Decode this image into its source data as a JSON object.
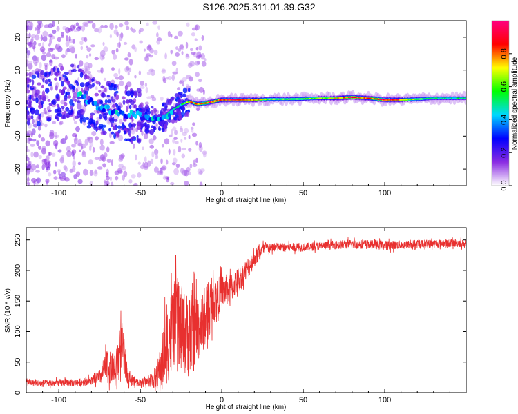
{
  "title": "S126.2025.311.01.39.G32",
  "chart_data": [
    {
      "type": "heatmap",
      "title": "S126.2025.311.01.39.G32",
      "xlabel": "Height of straight line (km)",
      "ylabel": "Frequency (Hz)",
      "xlim": [
        -120,
        150
      ],
      "ylim": [
        -25,
        25
      ],
      "xticks": [
        -100,
        -50,
        0,
        50,
        100
      ],
      "yticks": [
        -20,
        -10,
        0,
        10,
        20
      ],
      "colorbar": {
        "label": "Normalized spectral amplitude",
        "range": [
          0,
          1
        ],
        "ticks": [
          0.0,
          0.2,
          0.4,
          0.6,
          0.8
        ],
        "colors": [
          "#ffffff",
          "#8a2be2",
          "#0000ff",
          "#00d8ff",
          "#00ff00",
          "#ffff00",
          "#ff0000",
          "#ff0080"
        ]
      },
      "ridge": {
        "x": [
          -120,
          -110,
          -100,
          -90,
          -80,
          -70,
          -60,
          -50,
          -45,
          -40,
          -35,
          -30,
          -25,
          -20,
          -15,
          -10,
          -5,
          0,
          10,
          20,
          30,
          40,
          50,
          60,
          70,
          80,
          90,
          100,
          110,
          120,
          130,
          140,
          150
        ],
        "y": [
          1,
          2,
          3,
          4,
          0,
          -2,
          -3,
          -4,
          -5,
          -5,
          -4,
          -2,
          -0.5,
          0.5,
          -0.3,
          0,
          0.5,
          1,
          1,
          1,
          1.2,
          1.2,
          1.3,
          1.5,
          1.5,
          1.8,
          1.5,
          1,
          1,
          1.2,
          1.5,
          1.5,
          1.5
        ],
        "amplitude": [
          0.15,
          0.2,
          0.2,
          0.22,
          0.25,
          0.3,
          0.3,
          0.4,
          0.45,
          0.5,
          0.5,
          0.45,
          0.5,
          0.7,
          0.8,
          0.85,
          0.85,
          0.85,
          0.9,
          0.8,
          0.65,
          0.6,
          0.6,
          0.65,
          0.7,
          0.9,
          0.75,
          0.95,
          0.8,
          0.6,
          0.5,
          0.5,
          0.5
        ]
      }
    },
    {
      "type": "line",
      "xlabel": "Height of straight line (km)",
      "ylabel": "SNR (10 * v/v)",
      "xlim": [
        -120,
        150
      ],
      "ylim": [
        0,
        270
      ],
      "xticks": [
        -100,
        -50,
        0,
        50,
        100
      ],
      "yticks": [
        0,
        50,
        100,
        150,
        200,
        250
      ],
      "color": "#e8302f",
      "series": [
        {
          "x": [
            -120,
            -110,
            -100,
            -90,
            -80,
            -75,
            -70,
            -68,
            -65,
            -62,
            -60,
            -58,
            -55,
            -50,
            -45,
            -40,
            -37,
            -35,
            -32,
            -30,
            -27,
            -25,
            -22,
            -20,
            -18,
            -15,
            -13,
            -10,
            -5,
            0,
            5,
            10,
            15,
            20,
            25,
            30,
            40,
            50,
            60,
            70,
            80,
            90,
            100,
            110,
            120,
            130,
            140,
            150
          ],
          "y": [
            17,
            15,
            16,
            16,
            20,
            25,
            45,
            40,
            35,
            80,
            60,
            30,
            20,
            16,
            18,
            25,
            45,
            70,
            90,
            110,
            120,
            100,
            95,
            95,
            100,
            105,
            110,
            120,
            150,
            165,
            170,
            185,
            200,
            220,
            235,
            238,
            238,
            238,
            240,
            242,
            243,
            243,
            241,
            242,
            243,
            244,
            245,
            245
          ],
          "noise": [
            6,
            6,
            6,
            6,
            7,
            12,
            30,
            25,
            30,
            40,
            35,
            15,
            8,
            6,
            8,
            20,
            40,
            60,
            70,
            70,
            70,
            70,
            70,
            70,
            70,
            60,
            50,
            45,
            35,
            28,
            25,
            20,
            18,
            15,
            10,
            8,
            7,
            7,
            7,
            7,
            8,
            7,
            8,
            7,
            7,
            7,
            7,
            7
          ]
        }
      ]
    }
  ]
}
